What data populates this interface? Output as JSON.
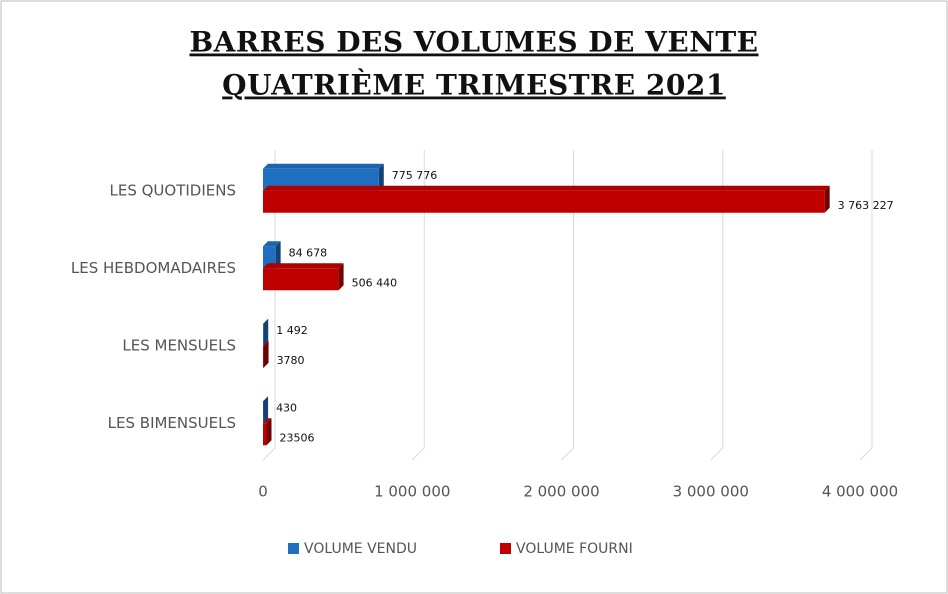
{
  "chart_data": {
    "type": "bar",
    "orientation": "horizontal",
    "title": [
      "BARRES DES VOLUMES DE VENTE",
      "QUATRIÈME TRIMESTRE 2021"
    ],
    "categories": [
      "LES QUOTIDIENS",
      "LES HEBDOMADAIRES",
      "LES MENSUELS",
      "LES BIMENSUELS"
    ],
    "series": [
      {
        "name": "VOLUME VENDU",
        "color": "#1f6fc0",
        "values": [
          775776,
          84678,
          1492,
          430
        ],
        "value_labels": [
          "775 776",
          "84 678",
          "1 492",
          "430"
        ]
      },
      {
        "name": "VOLUME FOURNI",
        "color": "#c00000",
        "values": [
          3763227,
          506440,
          3780,
          23506
        ],
        "value_labels": [
          "3 763 227",
          "506 440",
          "3780",
          "23506"
        ]
      }
    ],
    "xlim": [
      0,
      4000000
    ],
    "xticks": [
      0,
      {
        "value": 1000000,
        "label": "1 000 000"
      },
      {
        "value": 2000000,
        "label": "2 000 000"
      },
      {
        "value": 3000000,
        "label": "3 000 000"
      },
      {
        "value": 4000000,
        "label": "4 000 000"
      }
    ],
    "grid": true,
    "legend": "bottom"
  }
}
